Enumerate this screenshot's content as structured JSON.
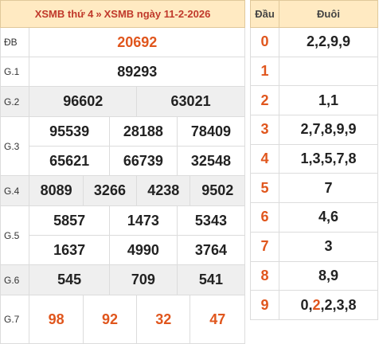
{
  "header": {
    "link1": "XSMB thứ 4",
    "separator": "»",
    "link2": "XSMB ngày 11-2-2026"
  },
  "prizes": {
    "db": {
      "label": "ĐB",
      "values": [
        "20692"
      ]
    },
    "g1": {
      "label": "G.1",
      "values": [
        "89293"
      ]
    },
    "g2": {
      "label": "G.2",
      "values": [
        "96602",
        "63021"
      ]
    },
    "g3": {
      "label": "G.3",
      "values": [
        "95539",
        "28188",
        "78409",
        "65621",
        "66739",
        "32548"
      ]
    },
    "g4": {
      "label": "G.4",
      "values": [
        "8089",
        "3266",
        "4238",
        "9502"
      ]
    },
    "g5": {
      "label": "G.5",
      "values": [
        "5857",
        "1473",
        "5343",
        "1637",
        "4990",
        "3764"
      ]
    },
    "g6": {
      "label": "G.6",
      "values": [
        "545",
        "709",
        "541"
      ]
    },
    "g7": {
      "label": "G.7",
      "values": [
        "98",
        "92",
        "32",
        "47"
      ]
    }
  },
  "loto": {
    "head_label": "Đầu",
    "tail_label": "Đuôi",
    "rows": [
      {
        "head": "0",
        "tail": "2,2,9,9"
      },
      {
        "head": "1",
        "tail": ""
      },
      {
        "head": "2",
        "tail": "1,1"
      },
      {
        "head": "3",
        "tail": "2,7,8,9,9"
      },
      {
        "head": "4",
        "tail": "1,3,5,7,8"
      },
      {
        "head": "5",
        "tail": "7"
      },
      {
        "head": "6",
        "tail": "4,6"
      },
      {
        "head": "7",
        "tail": "3"
      },
      {
        "head": "8",
        "tail": "8,9"
      },
      {
        "head": "9",
        "tail_parts": [
          "0,",
          "2",
          ",2,3,8"
        ]
      }
    ]
  },
  "colors": {
    "accent": "#e0561d",
    "header_bg": "#ffeac2",
    "alt_row_bg": "#efefef"
  }
}
